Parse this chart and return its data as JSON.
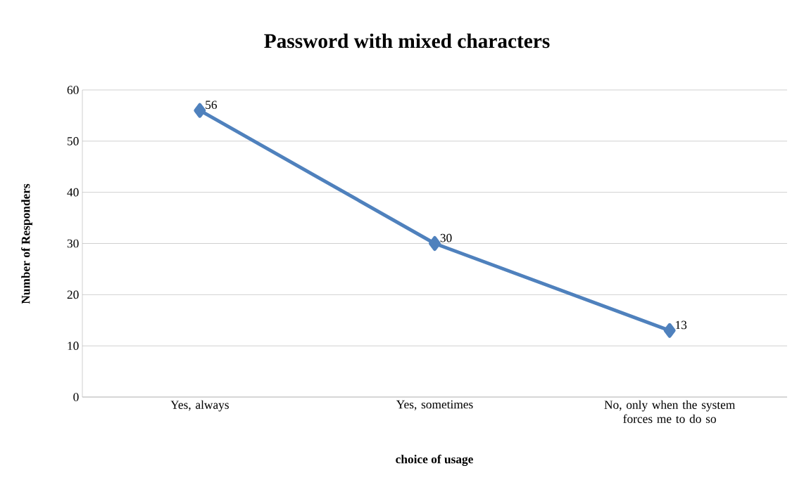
{
  "chart_data": {
    "type": "line",
    "title": "Password with mixed characters",
    "xlabel": "choice of usage",
    "ylabel": "Number of Responders",
    "categories": [
      "Yes, always",
      "Yes, sometimes",
      "No, only when the system forces me to do so"
    ],
    "values": [
      56,
      30,
      13
    ],
    "color": "#4f81bd",
    "ylim": [
      0,
      60
    ],
    "yticks": [
      0,
      10,
      20,
      30,
      40,
      50,
      60
    ],
    "grid": "y",
    "marker": "diamond",
    "line_style": "solid",
    "data_labels": true
  }
}
